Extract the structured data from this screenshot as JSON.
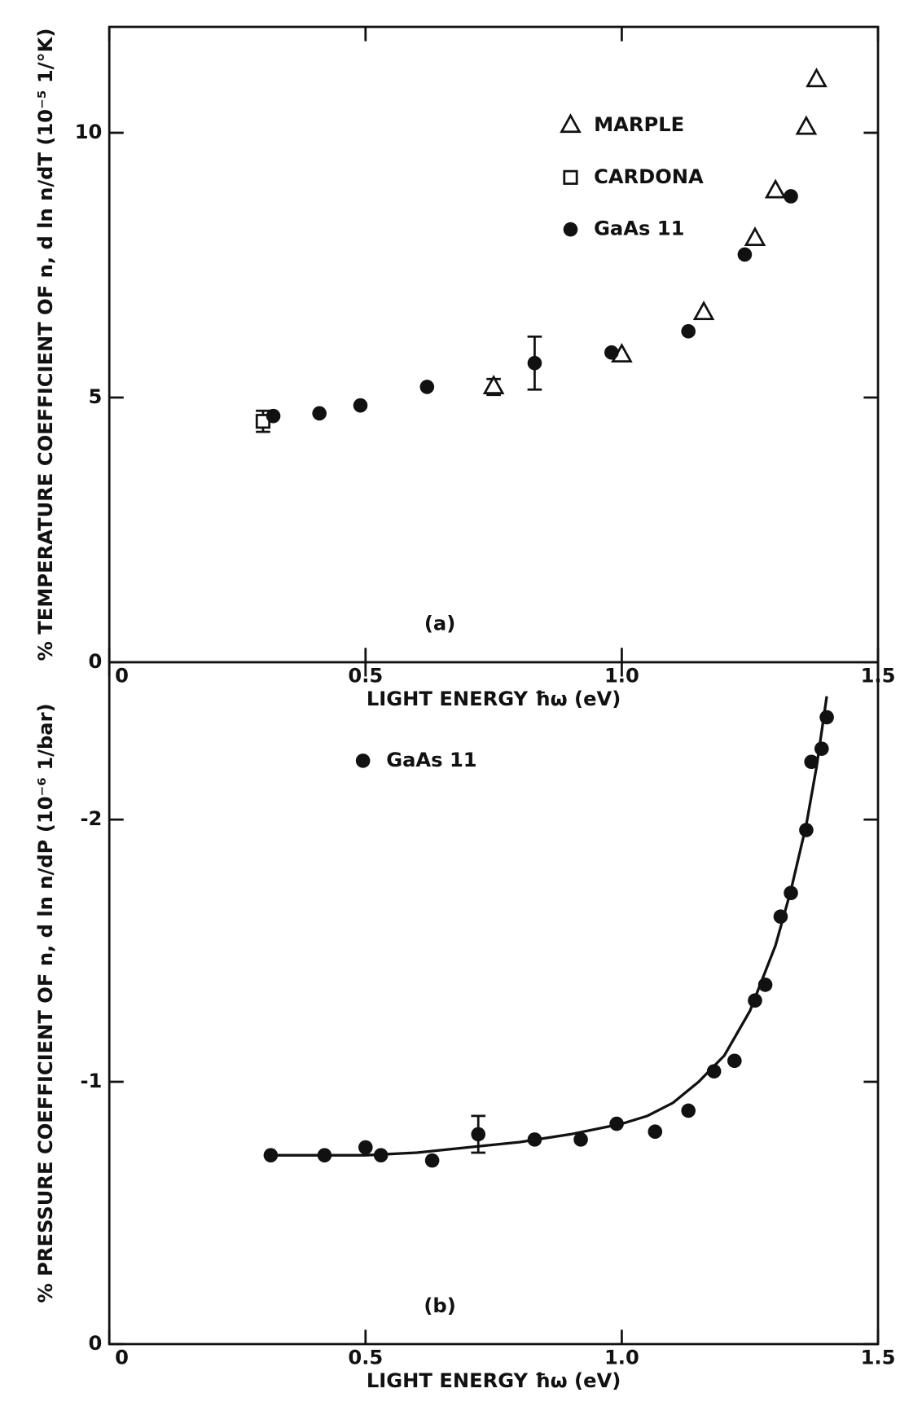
{
  "chart_data": [
    {
      "type": "scatter",
      "panel_label": "(a)",
      "xlabel": "LIGHT ENERGY ħω (eV)",
      "ylabel": "% TEMPERATURE COEFFICIENT OF n, d ln n/dT (10⁻⁵ 1/°K)",
      "xlim": [
        0,
        1.5
      ],
      "ylim": [
        0,
        12
      ],
      "xticks": [
        0,
        0.5,
        {
          "value": 1,
          "label": "1.0"
        },
        1.5
      ],
      "yticks": [
        0,
        5,
        10
      ],
      "legend": "upper right",
      "series": [
        {
          "name": "MARPLE",
          "marker": "triangle",
          "color": "#111",
          "x": [
            0.75,
            1.0,
            1.16,
            1.26,
            1.3,
            1.36,
            1.38
          ],
          "values": [
            5.2,
            5.8,
            6.6,
            8.0,
            8.9,
            10.1,
            11.0
          ],
          "errors": [
            0.15,
            null,
            null,
            null,
            null,
            null,
            null
          ]
        },
        {
          "name": "CARDONA",
          "marker": "square",
          "color": "#111",
          "x": [
            0.3
          ],
          "values": [
            4.55
          ],
          "errors": [
            0.2
          ]
        },
        {
          "name": "GaAs 11",
          "marker": "circle",
          "color": "#111",
          "x": [
            0.32,
            0.41,
            0.49,
            0.62,
            0.83,
            0.98,
            1.13,
            1.24,
            1.33
          ],
          "values": [
            4.65,
            4.7,
            4.85,
            5.2,
            5.65,
            5.85,
            6.25,
            7.7,
            8.8
          ],
          "errors": [
            null,
            null,
            null,
            null,
            0.5,
            null,
            null,
            null,
            null
          ]
        }
      ]
    },
    {
      "type": "scatter",
      "panel_label": "(b)",
      "xlabel": "LIGHT ENERGY ħω (eV)",
      "ylabel": "% PRESSURE COEFFICIENT OF n, d ln n/dP (10⁻⁶ 1/bar)",
      "xlim": [
        0,
        1.5
      ],
      "ylim": [
        0,
        -2.6
      ],
      "xticks": [
        0,
        0.5,
        {
          "value": 1,
          "label": "1.0"
        },
        1.5
      ],
      "yticks": [
        0,
        -1,
        -2
      ],
      "legend": "upper left",
      "series": [
        {
          "name": "GaAs 11",
          "marker": "circle",
          "color": "#111",
          "x": [
            0.315,
            0.42,
            0.5,
            0.53,
            0.63,
            0.72,
            0.83,
            0.92,
            0.99,
            1.065,
            1.13,
            1.18,
            1.22,
            1.26,
            1.28,
            1.31,
            1.33,
            1.36,
            1.37,
            1.39,
            1.4
          ],
          "values": [
            -0.72,
            -0.72,
            -0.75,
            -0.72,
            -0.7,
            -0.8,
            -0.78,
            -0.78,
            -0.84,
            -0.81,
            -0.89,
            -1.04,
            -1.08,
            -1.31,
            -1.37,
            -1.63,
            -1.72,
            -1.96,
            -2.22,
            -2.27,
            -2.39
          ],
          "errors": [
            null,
            null,
            null,
            null,
            null,
            0.07,
            null,
            null,
            null,
            null,
            null,
            null,
            null,
            null,
            null,
            null,
            null,
            null,
            null,
            null,
            null
          ]
        }
      ],
      "curve": {
        "x": [
          0.31,
          0.5,
          0.6,
          0.7,
          0.8,
          0.9,
          1.0,
          1.05,
          1.1,
          1.15,
          1.2,
          1.25,
          1.3,
          1.33,
          1.36,
          1.38,
          1.4
        ],
        "values": [
          -0.72,
          -0.72,
          -0.73,
          -0.75,
          -0.77,
          -0.8,
          -0.84,
          -0.87,
          -0.92,
          -1.0,
          -1.1,
          -1.27,
          -1.52,
          -1.73,
          -1.98,
          -2.2,
          -2.47
        ]
      }
    }
  ]
}
